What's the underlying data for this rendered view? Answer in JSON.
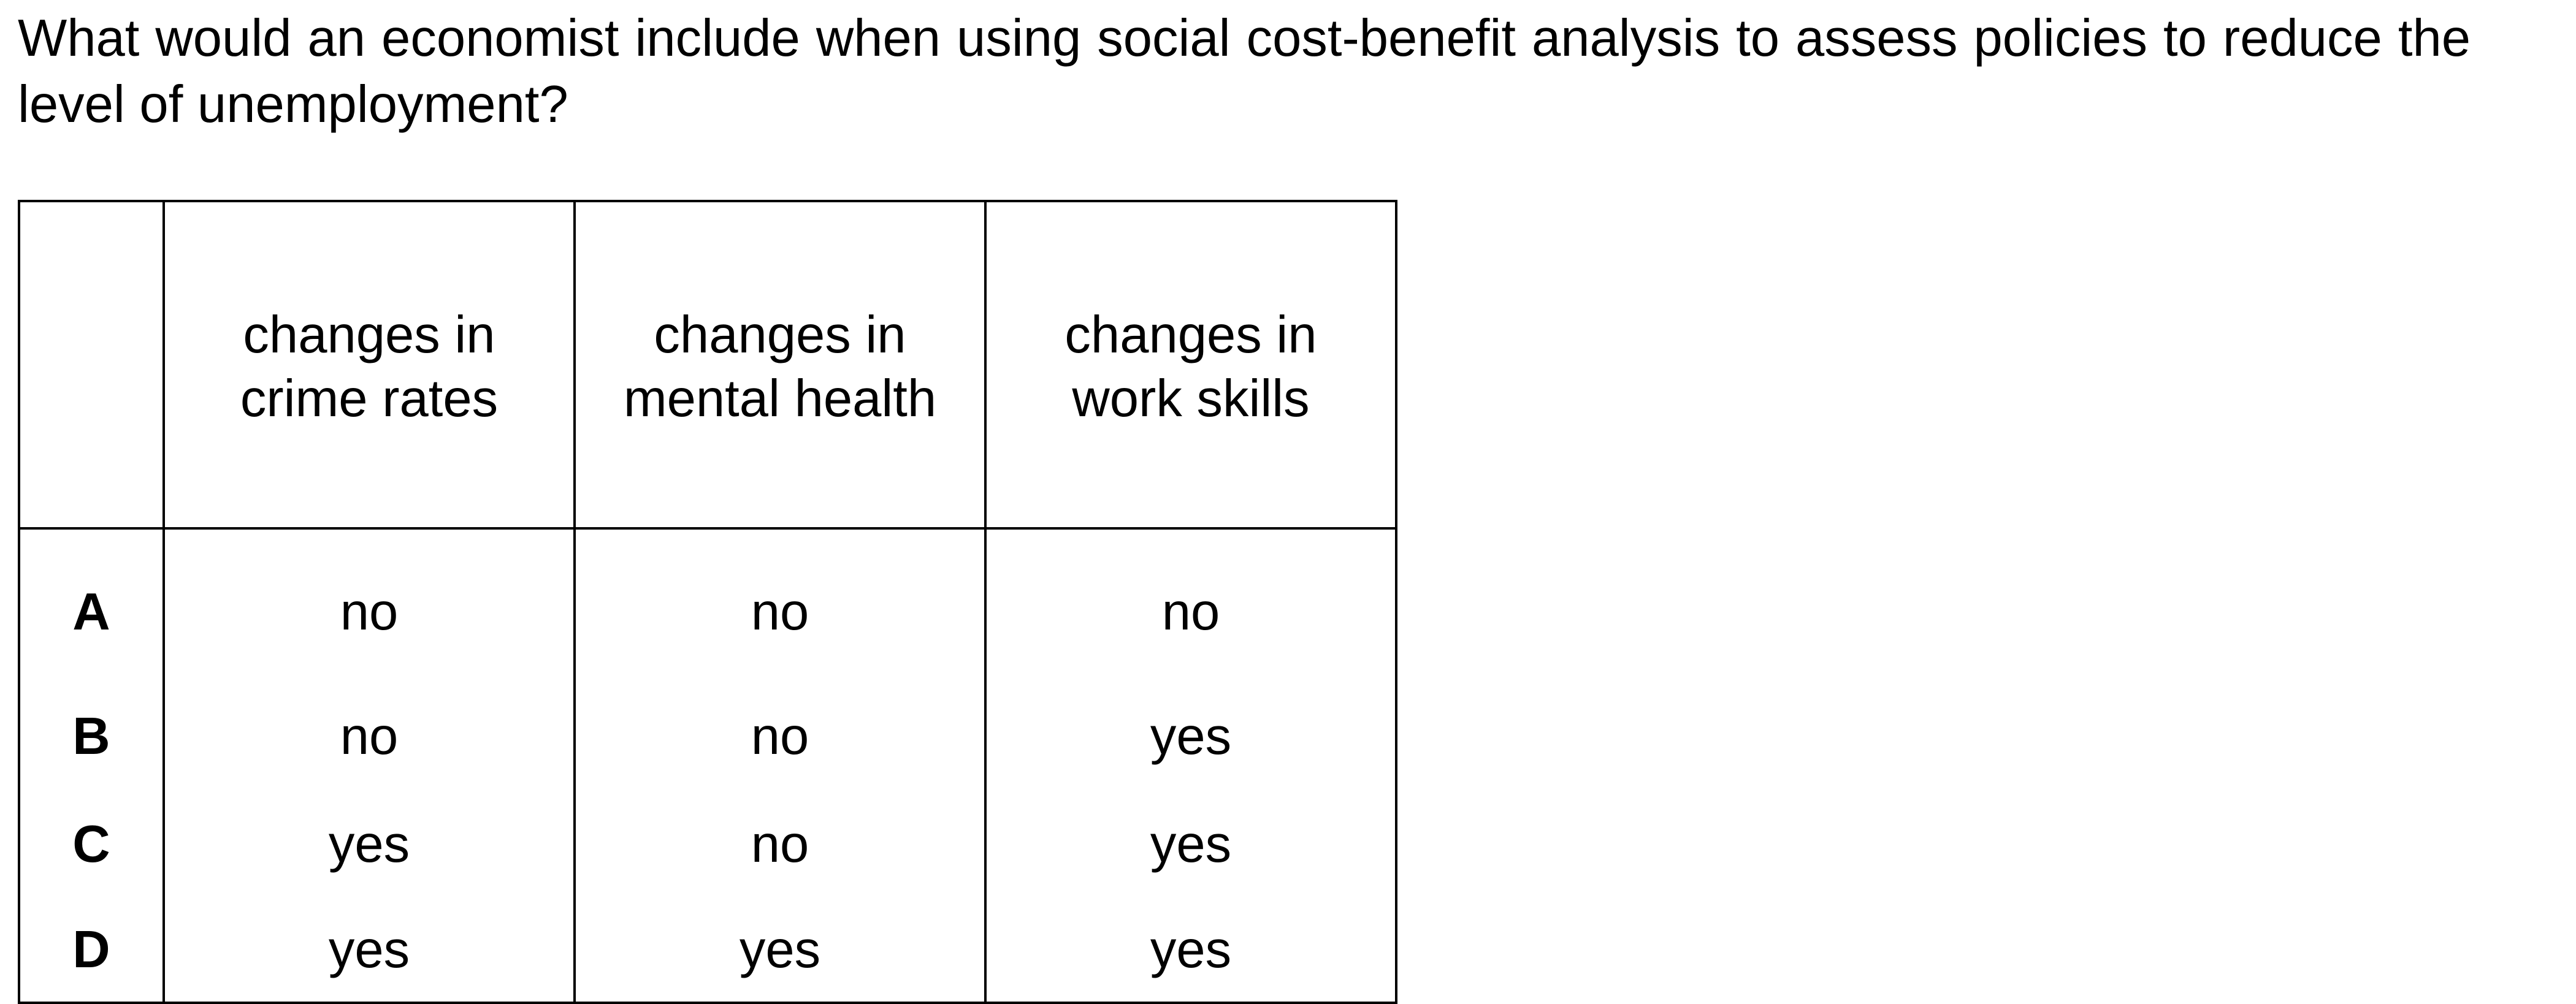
{
  "question": {
    "text": "What would an economist include when using social cost-benefit analysis to assess policies to reduce the level of unemployment?"
  },
  "table": {
    "headers": [
      "",
      "changes in crime rates",
      "changes in mental health",
      "changes in work skills"
    ],
    "header_lines": [
      [
        "",
        ""
      ],
      [
        "changes in",
        "crime rates"
      ],
      [
        "changes in",
        "mental health"
      ],
      [
        "changes in",
        "work skills"
      ]
    ],
    "rows": [
      {
        "key": "A",
        "cells": [
          "no",
          "no",
          "no"
        ]
      },
      {
        "key": "B",
        "cells": [
          "no",
          "no",
          "yes"
        ]
      },
      {
        "key": "C",
        "cells": [
          "yes",
          "no",
          "yes"
        ]
      },
      {
        "key": "D",
        "cells": [
          "yes",
          "yes",
          "yes"
        ]
      }
    ]
  }
}
